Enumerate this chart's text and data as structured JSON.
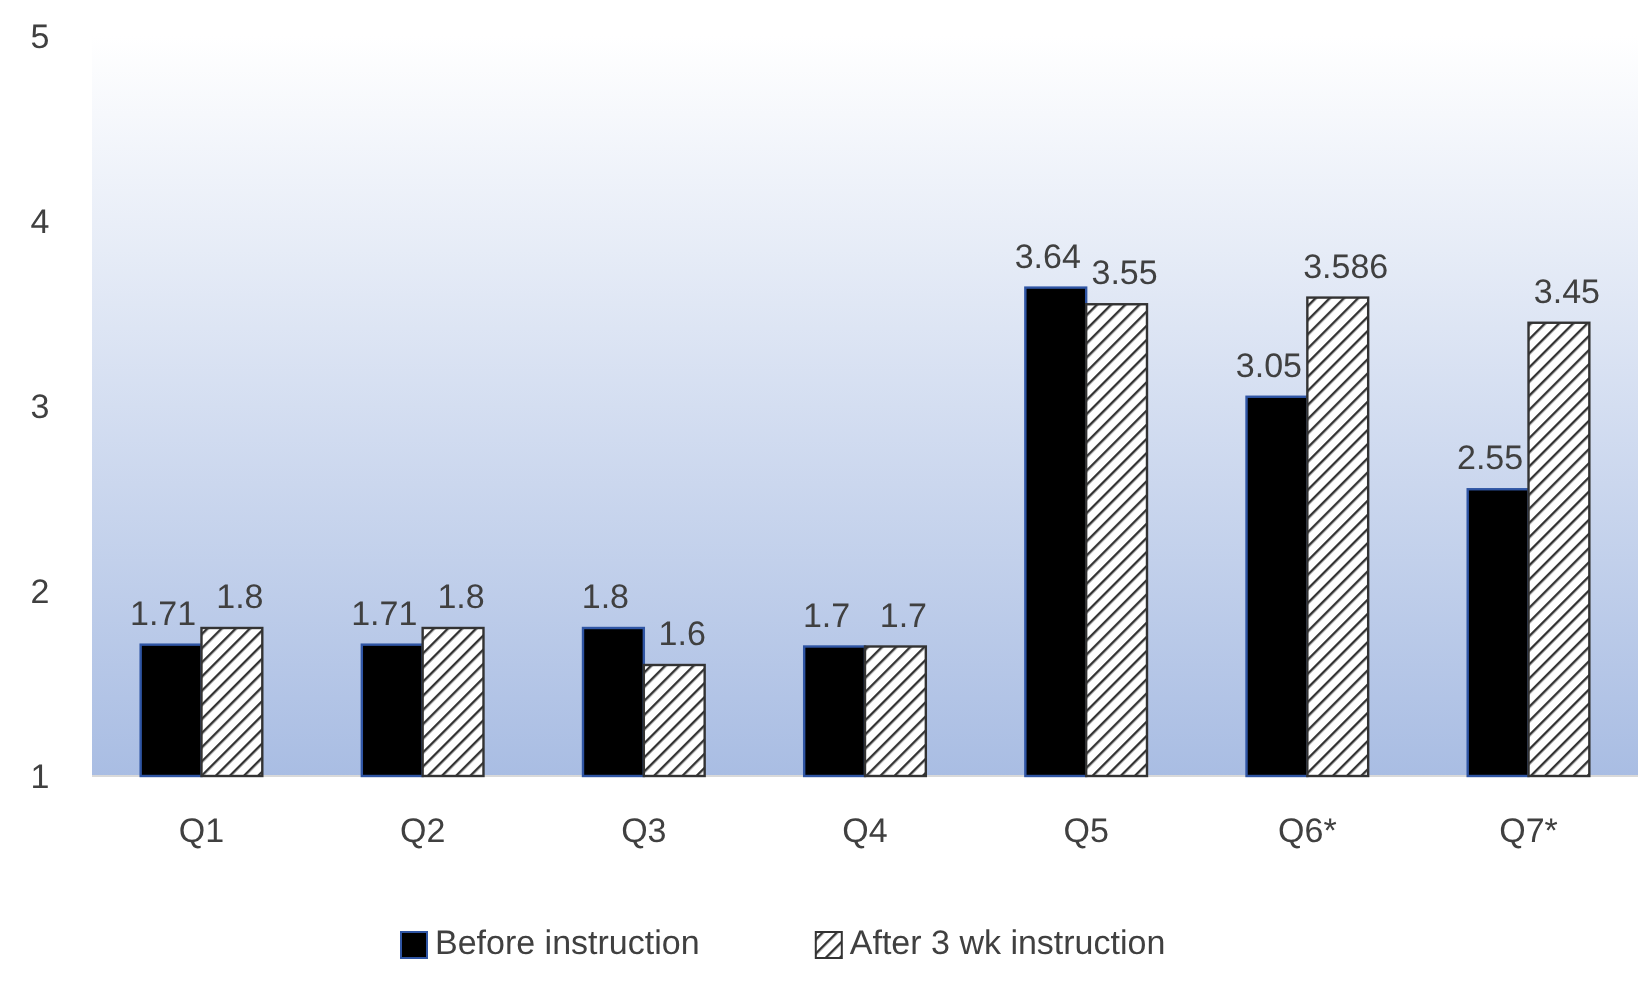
{
  "chart_data": {
    "type": "bar",
    "categories": [
      "Q1",
      "Q2",
      "Q3",
      "Q4",
      "Q5",
      "Q6*",
      "Q7*"
    ],
    "series": [
      {
        "name": "Before instruction",
        "color": "#000000",
        "values": [
          1.71,
          1.71,
          1.8,
          1.7,
          3.64,
          3.05,
          2.55
        ]
      },
      {
        "name": "After 3 wk instruction",
        "color": "#333333",
        "values": [
          1.8,
          1.8,
          1.6,
          1.7,
          3.55,
          3.586,
          3.45
        ]
      }
    ],
    "ylim": [
      1,
      5
    ],
    "yticks": [
      1,
      2,
      3,
      4,
      5
    ],
    "data_labels": true,
    "legend": "bottom",
    "grid": false
  }
}
